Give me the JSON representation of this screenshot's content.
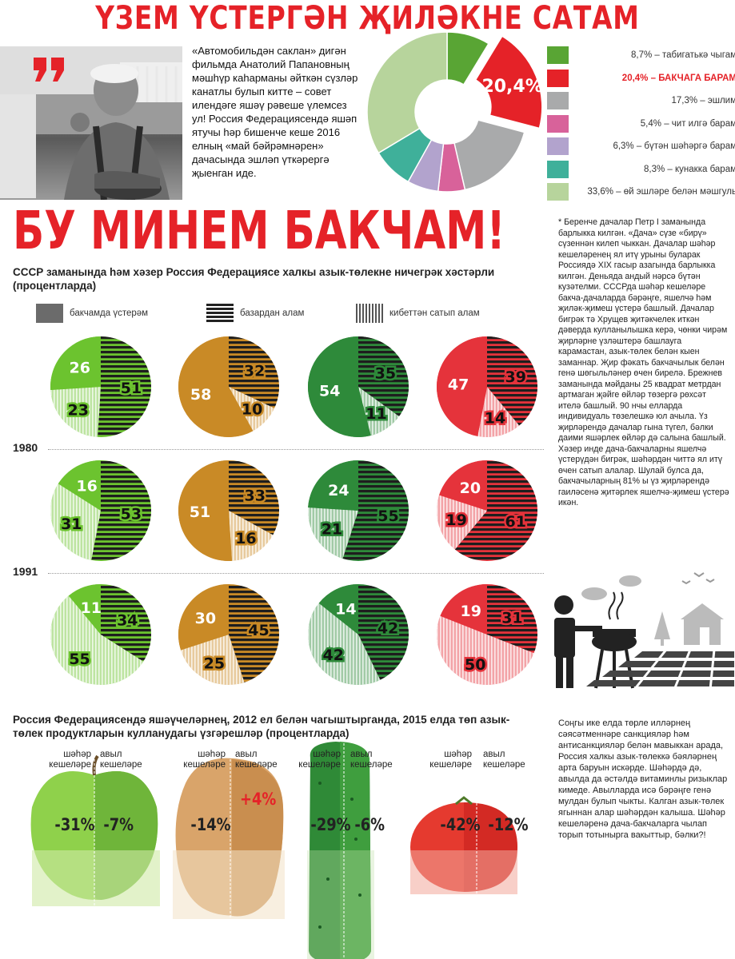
{
  "header": {
    "title": "ҮЗЕМ ҮСТЕРГӘН ҖИЛӘКНЕ САТАМ"
  },
  "quote": {
    "text": "«Автомобильдән саклан» дигән фильмда Анатолий Папановның мәшһүр каһарманы әйткән сүзләр канатлы булып китте – совет илендәге яшәү рәвеше үлемсез ул! Россия Федерациясендә яшәп ятучы һәр бишенче кеше 2016 елның «май бәйрәмнәрен» дачасында эшләп үткәрергә җыенган иде."
  },
  "colors": {
    "accent": "#e52228",
    "pie_green_light": "#6cc32f",
    "pie_orange": "#c98a26",
    "pie_green_dark": "#2e8a3a",
    "pie_red": "#e5333b"
  },
  "chart_data": [
    {
      "type": "pie",
      "name": "holiday_plans",
      "highlight_value": "20,4%",
      "slices": [
        {
          "value": 8.7,
          "label": "8,7% – табигатькә чыгам",
          "color": "#59a534"
        },
        {
          "value": 20.4,
          "label": "20,4% – БАКЧАГА БАРАМ",
          "color": "#e52228",
          "highlight": true
        },
        {
          "value": 17.3,
          "label": "17,3% – эшлим",
          "color": "#a9aaab"
        },
        {
          "value": 5.4,
          "label": "5,4% – чит илгә барам",
          "color": "#d8629a"
        },
        {
          "value": 6.3,
          "label": "6,3% – бүтән шәһәргә барам",
          "color": "#b2a3cd"
        },
        {
          "value": 8.3,
          "label": "8,3% – кунакка барам",
          "color": "#3fb09a"
        },
        {
          "value": 33.6,
          "label": "33,6% – өй эшләре белән мәшгуль",
          "color": "#b7d49c"
        }
      ]
    },
    {
      "type": "pie",
      "name": "food_sources",
      "title": "БУ МИНЕМ БАКЧАМ!",
      "subtitle": "СССР заманында һәм хәзер Россия Федерациясе халкы азык-төлекне ничегрәк хәстәрли (процентларда)",
      "legend": [
        "бакчамда үстерәм",
        "базардан алам",
        "кибеттән сатып алам"
      ],
      "rows": [
        {
          "year": "1980",
          "pies": [
            [
              26,
              51,
              23
            ],
            [
              58,
              32,
              10
            ],
            [
              54,
              35,
              11
            ],
            [
              47,
              39,
              14
            ]
          ]
        },
        {
          "year": "1991",
          "pies": [
            [
              16,
              53,
              31
            ],
            [
              51,
              33,
              16
            ],
            [
              24,
              55,
              21
            ],
            [
              20,
              61,
              19
            ]
          ]
        },
        {
          "year": "",
          "pies": [
            [
              11,
              34,
              55
            ],
            [
              30,
              45,
              25
            ],
            [
              14,
              42,
              42
            ],
            [
              19,
              31,
              50
            ]
          ]
        }
      ]
    },
    {
      "type": "bar",
      "name": "consumption_change",
      "subtitle": "Россия Федерациясендә яшәүчеләрнең, 2012 ел белән чагыштырганда, 2015 елда төп азык-төлек продуктларын кулланудагы үзгәрешләр (процентларда)",
      "categories": [
        "шәһәр кешеләре",
        "авыл кешеләре"
      ],
      "items": [
        {
          "product": "apple",
          "city": -31,
          "rural": -7
        },
        {
          "product": "potato",
          "city": -14,
          "rural": 4
        },
        {
          "product": "cucumber",
          "city": -29,
          "rural": -6
        },
        {
          "product": "tomato",
          "city": -42,
          "rural": -12
        }
      ]
    }
  ],
  "labels": {
    "year_1980": "1980",
    "year_1991": "1991",
    "city": "шәһәр кешеләре",
    "rural": "авыл кешеләре"
  },
  "produce_labels": [
    {
      "city": "-31%",
      "rural": "-7%"
    },
    {
      "city": "-14%",
      "rural": "+4%"
    },
    {
      "city": "-29%",
      "rural": "-6%"
    },
    {
      "city": "-42%",
      "rural": "-12%"
    }
  ],
  "sidebar": {
    "text1": "* Беренче дачалар Петр I заманында барлыкка килгән. «Дача» сүзе «бирү» сүзеннән килеп чыккан. Дачалар шәһәр кешеләренең ял итү урыны буларак Россиядә XIX гасыр азагында барлыкка килгән. Деньяда андый нәрсә бүтән кузәтелми. СССРда шәһәр кешеләре бакча-дачаларда бәрәңге, яшелчә һәм җиләк-җимеш үстерә башлый. Дачалар бигрәк тә Хрущев җитәкчелек иткән дәверда кулланылышка керә, чөнки чирәм җирләрне үзләштерә башлауга карамастан, азык-төлек белән кыен заманнар. Җир фәкать бакчачылык белән генә шөгыльләнер өчен бирелә. Брежнев заманында мәйданы 25 квадрат метрдан артмаган җәйге өйләр төзергә рөхсәт ителә башлый. 90 нчы елларда индивидуаль төзелешкә юл ачыла. Үз җирләрендә дачалар гына түгел, бәлки даими яшәрлек өйләр дә салына башлый. Хәзер инде дача-бакчаларны яшелчә үстерүдән бигрәк, шәһәрдән читтә ял итү өчен сатып алалар. Шулай булса да, бакчачыларның 81% ы үз җирләрендә гаиләсенә җитәрлек яшелчә-җимеш үстерә икән.",
    "text2": "Соңгы ике елда төрле илләрнең сәясәтменнәре санкцияләр һәм антисанкцияләр белән мавыккан арада, Россия халкы азык-төлеккә бәяләрнең арта баруын искәрде. Шәһәрдә дә, авылда да әстәлдә витаминлы ризыклар кимеде. Авылларда исә бәрәңге генә мулдан булып чыкты. Калган азык-төлек ягыннан алар шәһәрдән калыша. Шәһәр кешеләренә дача-бакчаларга чылап торып тотынырга вакыттыр, бәлки?!"
  }
}
